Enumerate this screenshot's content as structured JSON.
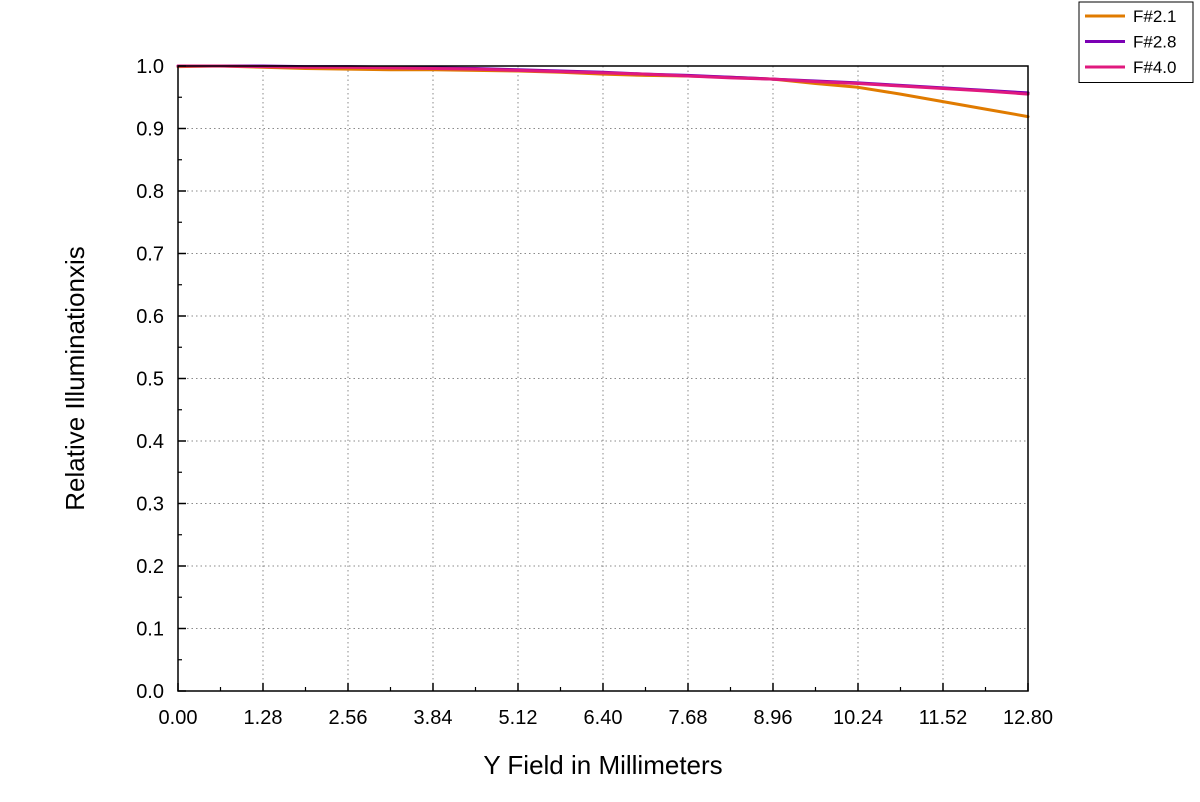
{
  "chart_data": {
    "type": "line",
    "title": "",
    "xlabel": "Y Field in Millimeters",
    "ylabel": "Relative Illuminationxis",
    "xlim": [
      0,
      12.8
    ],
    "ylim": [
      0,
      1.0
    ],
    "x_ticks": [
      "0.00",
      "1.28",
      "2.56",
      "3.84",
      "5.12",
      "6.40",
      "7.68",
      "8.96",
      "10.24",
      "11.52",
      "12.80"
    ],
    "y_ticks": [
      "0.0",
      "0.1",
      "0.2",
      "0.3",
      "0.4",
      "0.5",
      "0.6",
      "0.7",
      "0.8",
      "0.9",
      "1.0"
    ],
    "grid": true,
    "legend_position": "top-right, outside plot",
    "series": [
      {
        "name": "F#2.1",
        "color": "#E07B00",
        "x": [
          0,
          0.64,
          1.28,
          1.92,
          2.56,
          3.2,
          3.84,
          4.48,
          5.12,
          5.76,
          6.4,
          7.04,
          7.68,
          8.32,
          8.96,
          9.6,
          10.24,
          10.88,
          11.52,
          12.16,
          12.8
        ],
        "y": [
          0.999,
          1.0,
          0.998,
          0.996,
          0.995,
          0.994,
          0.994,
          0.993,
          0.992,
          0.99,
          0.987,
          0.985,
          0.984,
          0.982,
          0.979,
          0.972,
          0.966,
          0.955,
          0.943,
          0.931,
          0.919
        ]
      },
      {
        "name": "F#2.8",
        "color": "#7B00B4",
        "x": [
          0,
          0.64,
          1.28,
          1.92,
          2.56,
          3.2,
          3.84,
          4.48,
          5.12,
          5.76,
          6.4,
          7.04,
          7.68,
          8.32,
          8.96,
          9.6,
          10.24,
          10.88,
          11.52,
          12.16,
          12.8
        ],
        "y": [
          1.0,
          1.0,
          1.0,
          0.999,
          0.999,
          0.998,
          0.997,
          0.996,
          0.994,
          0.992,
          0.99,
          0.987,
          0.985,
          0.982,
          0.979,
          0.976,
          0.973,
          0.969,
          0.965,
          0.961,
          0.957
        ]
      },
      {
        "name": "F#4.0",
        "color": "#E0197E",
        "x": [
          0,
          0.64,
          1.28,
          1.92,
          2.56,
          3.2,
          3.84,
          4.48,
          5.12,
          5.76,
          6.4,
          7.04,
          7.68,
          8.32,
          8.96,
          9.6,
          10.24,
          10.88,
          11.52,
          12.16,
          12.8
        ],
        "y": [
          1.0,
          1.0,
          0.999,
          0.998,
          0.998,
          0.997,
          0.996,
          0.995,
          0.993,
          0.991,
          0.989,
          0.987,
          0.984,
          0.981,
          0.979,
          0.975,
          0.972,
          0.968,
          0.964,
          0.96,
          0.955
        ]
      }
    ]
  }
}
